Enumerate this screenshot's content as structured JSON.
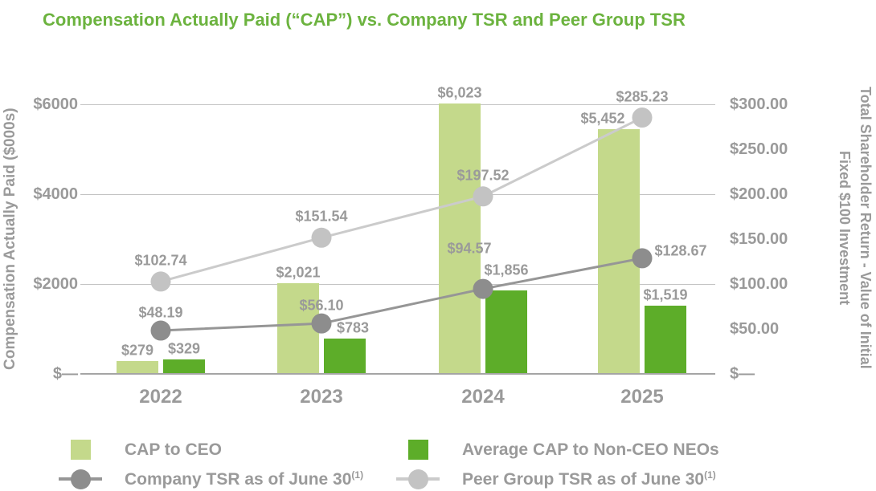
{
  "title": "Compensation Actually Paid (“CAP”) vs. Company TSR and Peer Group TSR",
  "colors": {
    "title_green": "#6CB33F",
    "cap_ceo": "#C4D98B",
    "cap_neo": "#5DAD29",
    "company_tsr": "#969696",
    "company_dot": "#8D8D8D",
    "peer_tsr": "#CBCBCB",
    "peer_dot": "#C3C3C3",
    "text_gray": "#9A9A9A",
    "gridline": "#C3C3C3",
    "baseline": "#A5A5A5"
  },
  "left_axis": {
    "title": "Compensation Actually Paid ($000s)",
    "ticks": [
      "$6000",
      "$4000",
      "$2000",
      "$—"
    ],
    "tick_values": [
      6000,
      4000,
      2000,
      0
    ]
  },
  "right_axis": {
    "title_line1": "Total Shareholder Return - Value of Initial",
    "title_line2": "Fixed $100 Investment",
    "ticks": [
      "$300.00",
      "$250.00",
      "$200.00",
      "$150.00",
      "$100.00",
      "$50.00",
      "$—"
    ],
    "tick_values": [
      300,
      250,
      200,
      150,
      100,
      50,
      0
    ]
  },
  "chart_data": {
    "type": "combo bar+line",
    "categories": [
      "2022",
      "2023",
      "2024",
      "2025"
    ],
    "left_axis_range": [
      0,
      6000
    ],
    "right_axis_range": [
      0,
      300
    ],
    "gridlines_left": [
      2000,
      4000,
      6000
    ],
    "grid": "horizontal gridlines at $2000/$4000/$6000 plus baseline",
    "legend_position": "bottom",
    "bar_series": [
      {
        "name": "CAP to CEO",
        "axis": "left",
        "values": [
          279,
          2021,
          6023,
          5452
        ],
        "labels": [
          "$279",
          "$2,021",
          "$6,023",
          "$5,452"
        ],
        "color_key": "cap_ceo"
      },
      {
        "name": "Average CAP to Non-CEO NEOs",
        "axis": "left",
        "values": [
          329,
          783,
          1856,
          1519
        ],
        "labels": [
          "$329",
          "$783",
          "$1,856",
          "$1,519"
        ],
        "color_key": "cap_neo"
      }
    ],
    "line_series": [
      {
        "name": "Company TSR as of June 30(1)",
        "axis": "right",
        "values": [
          48.19,
          56.1,
          94.57,
          128.67
        ],
        "labels": [
          "$48.19",
          "$56.10",
          "$94.57",
          "$128.67"
        ],
        "color_key": "company_tsr",
        "dot_color_key": "company_dot"
      },
      {
        "name": "Peer Group TSR as of June 30(1)",
        "axis": "right",
        "values": [
          102.74,
          151.54,
          197.52,
          285.23
        ],
        "labels": [
          "$102.74",
          "$151.54",
          "$197.52",
          "$285.23"
        ],
        "color_key": "peer_tsr",
        "dot_color_key": "peer_dot"
      }
    ]
  },
  "legend": [
    {
      "label": "CAP to CEO",
      "sup": "",
      "marker": "square",
      "color_key": "cap_ceo"
    },
    {
      "label": "Average CAP to Non-CEO NEOs",
      "sup": "",
      "marker": "square",
      "color_key": "cap_neo"
    },
    {
      "label": "Company TSR as of June 30",
      "sup": "(1)",
      "marker": "dot",
      "color_key": "company_dot",
      "line_color_key": "company_tsr"
    },
    {
      "label": "Peer Group TSR as of June 30",
      "sup": "(1)",
      "marker": "dot",
      "color_key": "peer_dot",
      "line_color_key": "peer_tsr"
    }
  ]
}
